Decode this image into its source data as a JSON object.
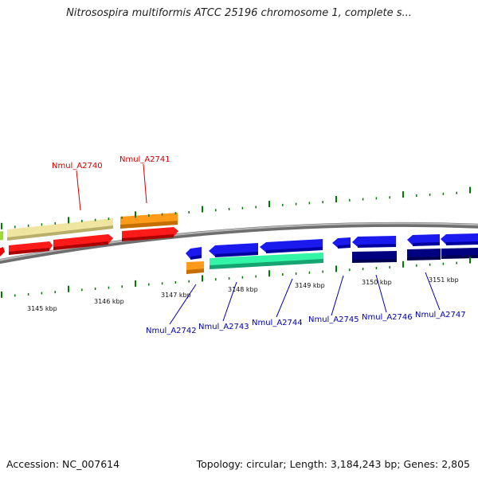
{
  "title": "Nitrosospira multiformis ATCC 25196 chromosome 1, complete s...",
  "footer": {
    "accession": "Accession: NC_007614",
    "info": "Topology: circular; Length: 3,184,243 bp; Genes: 2,805"
  },
  "colors": {
    "forward_label": "#cc0000",
    "reverse_label": "#0000aa",
    "backbone": "#8a8a8a",
    "tick": "#007a00"
  },
  "kbp_labels": [
    "3145 kbp",
    "3146 kbp",
    "3147 kbp",
    "3148 kbp",
    "3149 kbp",
    "3150 kbp",
    "3151 kbp"
  ],
  "forward_labels": [
    "Nmul_A2740",
    "Nmul_A2741"
  ],
  "reverse_labels": [
    "Nmul_A2742",
    "Nmul_A2743",
    "Nmul_A2744",
    "Nmul_A2745",
    "Nmul_A2746",
    "Nmul_A2747"
  ]
}
